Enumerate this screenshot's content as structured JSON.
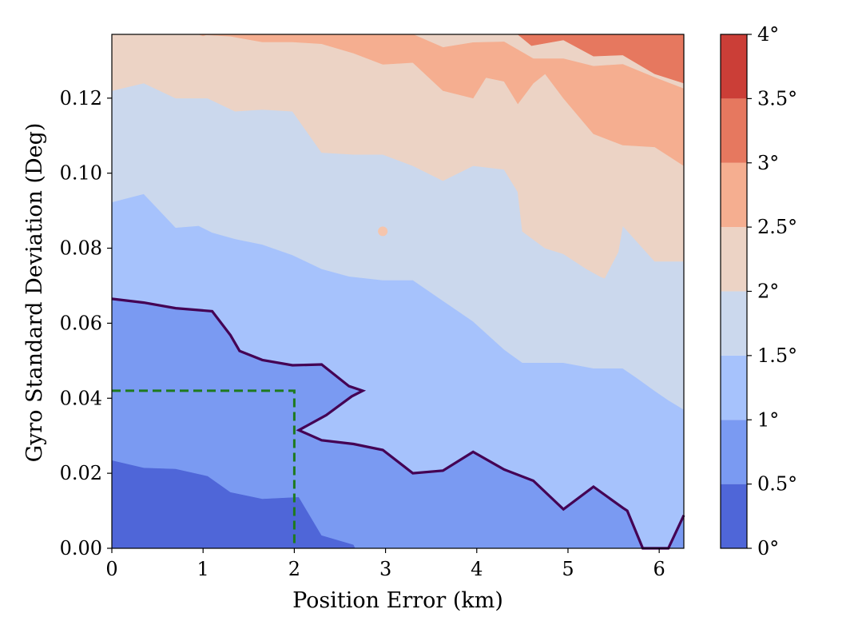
{
  "chart_data": {
    "type": "contour",
    "title": "",
    "xlabel": "Position Error (km)",
    "ylabel": "Gyro Standard Deviation (Deg)",
    "xlim": [
      0,
      6.27
    ],
    "ylim": [
      0,
      0.137
    ],
    "x_ticks": [
      0,
      1,
      2,
      3,
      4,
      5,
      6
    ],
    "x_tick_labels": [
      "0",
      "1",
      "2",
      "3",
      "4",
      "5",
      "6"
    ],
    "y_ticks": [
      0.0,
      0.02,
      0.04,
      0.06,
      0.08,
      0.1,
      0.12
    ],
    "y_tick_labels": [
      "0.00",
      "0.02",
      "0.04",
      "0.06",
      "0.08",
      "0.10",
      "0.12"
    ],
    "colorbar": {
      "levels": [
        0,
        0.5,
        1,
        1.5,
        2,
        2.5,
        3,
        3.5,
        4
      ],
      "tick_labels": [
        "0°",
        "0.5°",
        "1°",
        "1.5°",
        "2°",
        "2.5°",
        "3°",
        "3.5°",
        "4°"
      ],
      "colors": [
        "#4f66d8",
        "#7a9af2",
        "#a6c2fc",
        "#cbd8ed",
        "#ecd3c5",
        "#f5ae90",
        "#e6785f",
        "#cb3e37"
      ]
    },
    "filled_regions": [
      {
        "name": "band-0.5-1.0",
        "color": "#7a9af2",
        "lower_boundary": [
          [
            0,
            0.0235
          ],
          [
            0.35,
            0.0215
          ],
          [
            0.7,
            0.0212
          ],
          [
            1.05,
            0.0193
          ],
          [
            1.3,
            0.015
          ],
          [
            1.65,
            0.0132
          ],
          [
            2.05,
            0.0137
          ],
          [
            2.3,
            0.0035
          ],
          [
            2.65,
            0.001
          ],
          [
            2.67,
            0
          ]
        ]
      },
      {
        "name": "band-1.0-1.5",
        "color": "#a6c2fc",
        "lower_boundary": [
          [
            0,
            0.0665
          ],
          [
            0.35,
            0.0655
          ],
          [
            0.7,
            0.064
          ],
          [
            1.1,
            0.0632
          ],
          [
            1.3,
            0.0568
          ],
          [
            1.4,
            0.0526
          ],
          [
            1.65,
            0.0502
          ],
          [
            1.98,
            0.0488
          ],
          [
            2.3,
            0.049
          ],
          [
            2.6,
            0.0432
          ],
          [
            2.75,
            0.042
          ],
          [
            2.63,
            0.0405
          ],
          [
            2.35,
            0.0355
          ],
          [
            2.05,
            0.0315
          ],
          [
            2.3,
            0.0288
          ],
          [
            2.65,
            0.0278
          ],
          [
            2.97,
            0.0262
          ],
          [
            3.3,
            0.02
          ],
          [
            3.63,
            0.0207
          ],
          [
            3.96,
            0.0257
          ],
          [
            4.3,
            0.021
          ],
          [
            4.62,
            0.018
          ],
          [
            4.95,
            0.0104
          ],
          [
            5.28,
            0.0164
          ],
          [
            5.6,
            0.0108
          ],
          [
            5.65,
            0.01
          ],
          [
            5.82,
            0
          ],
          [
            6.1,
            0
          ],
          [
            6.27,
            0.0088
          ]
        ]
      },
      {
        "name": "band-1.5-2.0",
        "color": "#cbd8ed",
        "lower_boundary": [
          [
            0,
            0.0923
          ],
          [
            0.35,
            0.0945
          ],
          [
            0.7,
            0.0855
          ],
          [
            0.95,
            0.086
          ],
          [
            1.1,
            0.0842
          ],
          [
            1.35,
            0.0825
          ],
          [
            1.65,
            0.081
          ],
          [
            1.98,
            0.0782
          ],
          [
            2.3,
            0.0745
          ],
          [
            2.6,
            0.0725
          ],
          [
            2.97,
            0.0715
          ],
          [
            3.3,
            0.0715
          ],
          [
            3.63,
            0.066
          ],
          [
            3.96,
            0.0605
          ],
          [
            4.3,
            0.053
          ],
          [
            4.5,
            0.0495
          ],
          [
            4.95,
            0.0495
          ],
          [
            5.28,
            0.048
          ],
          [
            5.6,
            0.048
          ],
          [
            5.75,
            0.0455
          ],
          [
            5.95,
            0.042
          ],
          [
            6.1,
            0.0395
          ],
          [
            6.27,
            0.037
          ]
        ]
      },
      {
        "name": "band-2.0-2.5",
        "color": "#ecd3c5",
        "lower_boundary": [
          [
            0,
            0.122
          ],
          [
            0.35,
            0.124
          ],
          [
            0.7,
            0.12
          ],
          [
            1.05,
            0.12
          ],
          [
            1.35,
            0.1165
          ],
          [
            1.65,
            0.117
          ],
          [
            1.98,
            0.1165
          ],
          [
            2.3,
            0.1055
          ],
          [
            2.65,
            0.105
          ],
          [
            2.97,
            0.105
          ],
          [
            3.3,
            0.102
          ],
          [
            3.63,
            0.098
          ],
          [
            3.96,
            0.102
          ],
          [
            4.3,
            0.101
          ],
          [
            4.45,
            0.095
          ],
          [
            4.5,
            0.0845
          ],
          [
            4.75,
            0.08
          ],
          [
            4.95,
            0.0785
          ],
          [
            5.2,
            0.0745
          ],
          [
            5.35,
            0.0725
          ],
          [
            5.4,
            0.072
          ],
          [
            5.55,
            0.079
          ],
          [
            5.6,
            0.086
          ],
          [
            5.95,
            0.0765
          ],
          [
            6.27,
            0.0765
          ]
        ]
      },
      {
        "name": "band-2.5-3.0",
        "color": "#f5ae90",
        "lower_boundary": [
          [
            0.95,
            0.137
          ],
          [
            1.0,
            0.1366
          ],
          [
            1.05,
            0.137
          ],
          [
            2.2,
            0.137
          ],
          [
            2.6,
            0.137
          ],
          [
            2.97,
            0.137
          ],
          [
            3.3,
            0.137
          ],
          [
            3.63,
            0.1335
          ],
          [
            3.96,
            0.1348
          ],
          [
            4.3,
            0.135
          ],
          [
            4.62,
            0.1305
          ],
          [
            4.95,
            0.1305
          ],
          [
            5.28,
            0.1285
          ],
          [
            5.6,
            0.129
          ],
          [
            5.95,
            0.1255
          ],
          [
            6.27,
            0.1225
          ],
          [
            6.27,
            0.102
          ],
          [
            5.95,
            0.107
          ],
          [
            5.6,
            0.1075
          ],
          [
            5.28,
            0.1105
          ],
          [
            4.95,
            0.12
          ],
          [
            4.75,
            0.1265
          ],
          [
            4.62,
            0.124
          ],
          [
            4.45,
            0.1185
          ],
          [
            4.3,
            0.1245
          ],
          [
            4.1,
            0.1255
          ],
          [
            3.96,
            0.12
          ],
          [
            3.63,
            0.122
          ],
          [
            3.3,
            0.1295
          ],
          [
            2.97,
            0.129
          ],
          [
            2.65,
            0.132
          ],
          [
            2.3,
            0.1345
          ],
          [
            1.98,
            0.135
          ],
          [
            1.65,
            0.135
          ],
          [
            1.3,
            0.1365
          ],
          [
            0.95,
            0.137
          ]
        ]
      },
      {
        "name": "band-3.0-3.5",
        "color": "#e6785f",
        "lower_boundary": [
          [
            4.45,
            0.137
          ],
          [
            4.6,
            0.134
          ],
          [
            4.95,
            0.1355
          ],
          [
            5.28,
            0.1312
          ],
          [
            5.6,
            0.1315
          ],
          [
            5.95,
            0.1265
          ],
          [
            6.27,
            0.124
          ],
          [
            6.27,
            0.137
          ]
        ]
      }
    ],
    "contour_line": {
      "level": "1°",
      "color": "#440154",
      "points": [
        [
          0,
          0.0665
        ],
        [
          0.35,
          0.0655
        ],
        [
          0.7,
          0.064
        ],
        [
          1.1,
          0.0632
        ],
        [
          1.3,
          0.0568
        ],
        [
          1.4,
          0.0526
        ],
        [
          1.65,
          0.0502
        ],
        [
          1.98,
          0.0488
        ],
        [
          2.3,
          0.049
        ],
        [
          2.6,
          0.0432
        ],
        [
          2.75,
          0.042
        ],
        [
          2.63,
          0.0405
        ],
        [
          2.35,
          0.0355
        ],
        [
          2.05,
          0.0315
        ],
        [
          2.3,
          0.0288
        ],
        [
          2.65,
          0.0278
        ],
        [
          2.97,
          0.0262
        ],
        [
          3.3,
          0.02
        ],
        [
          3.63,
          0.0207
        ],
        [
          3.96,
          0.0257
        ],
        [
          4.3,
          0.021
        ],
        [
          4.62,
          0.018
        ],
        [
          4.95,
          0.0104
        ],
        [
          5.28,
          0.0164
        ],
        [
          5.6,
          0.0108
        ],
        [
          5.65,
          0.01
        ],
        [
          5.82,
          0
        ],
        [
          6.1,
          0
        ],
        [
          6.27,
          0.0088
        ]
      ]
    },
    "dashed_box": {
      "color": "#1e7a1e",
      "points": [
        [
          0,
          0.042
        ],
        [
          2.0,
          0.042
        ],
        [
          2.0,
          0
        ]
      ]
    },
    "spots": [
      {
        "x": 2.97,
        "y": 0.0845,
        "color": "#f5c5ad"
      }
    ]
  }
}
